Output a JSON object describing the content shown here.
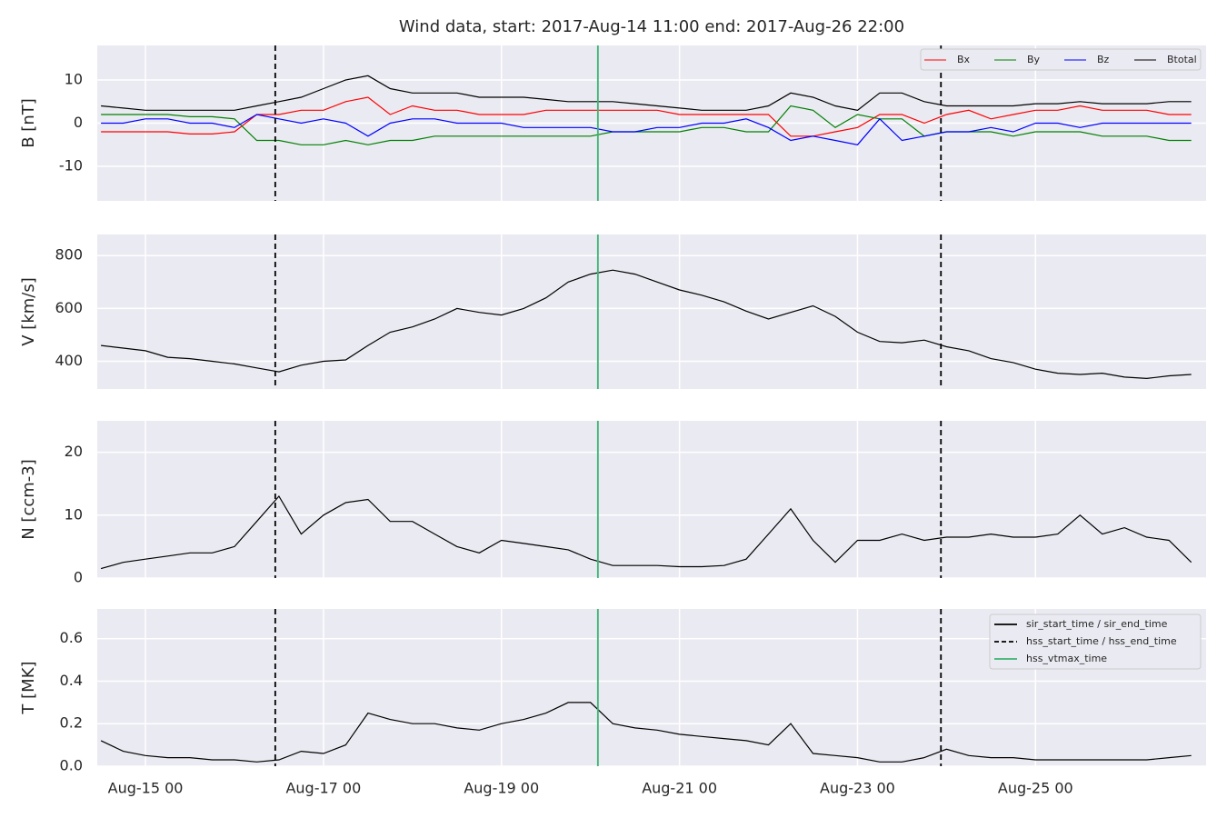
{
  "title": "Wind data, start: 2017-Aug-14 11:00  end: 2017-Aug-26 22:00",
  "markers": [
    {
      "name": "sir_start_time / sir_end_time",
      "color": "#000000",
      "style": "solid",
      "times": []
    },
    {
      "name": "hss_start_time / hss_end_time",
      "color": "#000000",
      "style": "dashed",
      "times": [
        "2017-08-16 11:00",
        "2017-08-23 22:30"
      ]
    },
    {
      "name": "hss_vtmax_time",
      "color": "#3cb371",
      "style": "solid",
      "times": [
        "2017-08-20 02:00"
      ]
    }
  ],
  "marker_legend": "upper right",
  "chart_data": [
    {
      "type": "line",
      "ylabel": "B [nT]",
      "grid": true,
      "legend": "upper right",
      "xlim": [
        "2017-08-14 11:00",
        "2017-08-26 22:00"
      ],
      "ylim": [
        -18,
        18
      ],
      "yticks": [
        -10,
        0,
        10
      ],
      "x": [
        "2017-08-14 12:00",
        "2017-08-14 18:00",
        "2017-08-15 00:00",
        "2017-08-15 06:00",
        "2017-08-15 12:00",
        "2017-08-15 18:00",
        "2017-08-16 00:00",
        "2017-08-16 06:00",
        "2017-08-16 12:00",
        "2017-08-16 18:00",
        "2017-08-17 00:00",
        "2017-08-17 06:00",
        "2017-08-17 12:00",
        "2017-08-17 18:00",
        "2017-08-18 00:00",
        "2017-08-18 06:00",
        "2017-08-18 12:00",
        "2017-08-18 18:00",
        "2017-08-19 00:00",
        "2017-08-19 06:00",
        "2017-08-19 12:00",
        "2017-08-19 18:00",
        "2017-08-20 00:00",
        "2017-08-20 06:00",
        "2017-08-20 12:00",
        "2017-08-20 18:00",
        "2017-08-21 00:00",
        "2017-08-21 06:00",
        "2017-08-21 12:00",
        "2017-08-21 18:00",
        "2017-08-22 00:00",
        "2017-08-22 06:00",
        "2017-08-22 12:00",
        "2017-08-22 18:00",
        "2017-08-23 00:00",
        "2017-08-23 06:00",
        "2017-08-23 12:00",
        "2017-08-23 18:00",
        "2017-08-24 00:00",
        "2017-08-24 06:00",
        "2017-08-24 12:00",
        "2017-08-24 18:00",
        "2017-08-25 00:00",
        "2017-08-25 06:00",
        "2017-08-25 12:00",
        "2017-08-25 18:00",
        "2017-08-26 00:00",
        "2017-08-26 06:00",
        "2017-08-26 12:00",
        "2017-08-26 18:00"
      ],
      "series": [
        {
          "name": "Bx",
          "color": "#ff0000",
          "values": [
            -2,
            -2,
            -2,
            -2,
            -2.5,
            -2.5,
            -2,
            2,
            2,
            3,
            3,
            5,
            6,
            2,
            4,
            3,
            3,
            2,
            2,
            2,
            3,
            3,
            3,
            3,
            3,
            3,
            2,
            2,
            2,
            2,
            2,
            -3,
            -3,
            -2,
            -1,
            2,
            2,
            0,
            2,
            3,
            1,
            2,
            3,
            3,
            4,
            3,
            3,
            3,
            2,
            2
          ]
        },
        {
          "name": "By",
          "color": "#008000",
          "values": [
            2,
            2,
            2,
            2,
            1.5,
            1.5,
            1,
            -4,
            -4,
            -5,
            -5,
            -4,
            -5,
            -4,
            -4,
            -3,
            -3,
            -3,
            -3,
            -3,
            -3,
            -3,
            -3,
            -2,
            -2,
            -2,
            -2,
            -1,
            -1,
            -2,
            -2,
            4,
            3,
            -1,
            2,
            1,
            1,
            -3,
            -2,
            -2,
            -2,
            -3,
            -2,
            -2,
            -2,
            -3,
            -3,
            -3,
            -4,
            -4
          ]
        },
        {
          "name": "Bz",
          "color": "#0000ff",
          "values": [
            0,
            0,
            1,
            1,
            0,
            0,
            -1,
            2,
            1,
            0,
            1,
            0,
            -3,
            0,
            1,
            1,
            0,
            0,
            0,
            -1,
            -1,
            -1,
            -1,
            -2,
            -2,
            -1,
            -1,
            0,
            0,
            1,
            -1,
            -4,
            -3,
            -4,
            -5,
            1,
            -4,
            -3,
            -2,
            -2,
            -1,
            -2,
            0,
            0,
            -1,
            0,
            0,
            0,
            0,
            0
          ]
        },
        {
          "name": "Btotal",
          "color": "#000000",
          "values": [
            4,
            3.5,
            3,
            3,
            3,
            3,
            3,
            4,
            5,
            6,
            8,
            10,
            11,
            8,
            7,
            7,
            7,
            6,
            6,
            6,
            5.5,
            5,
            5,
            5,
            4.5,
            4,
            3.5,
            3,
            3,
            3,
            4,
            7,
            6,
            4,
            3,
            7,
            7,
            5,
            4,
            4,
            4,
            4,
            4.5,
            4.5,
            5,
            4.5,
            4.5,
            4.5,
            5,
            5
          ]
        }
      ]
    },
    {
      "type": "line",
      "ylabel": "V [km/s]",
      "grid": true,
      "color": "#000000",
      "xlim": [
        "2017-08-14 11:00",
        "2017-08-26 22:00"
      ],
      "ylim": [
        295,
        880
      ],
      "yticks": [
        400,
        600,
        800
      ],
      "x": [
        "2017-08-14 12:00",
        "2017-08-14 18:00",
        "2017-08-15 00:00",
        "2017-08-15 06:00",
        "2017-08-15 12:00",
        "2017-08-15 18:00",
        "2017-08-16 00:00",
        "2017-08-16 06:00",
        "2017-08-16 12:00",
        "2017-08-16 18:00",
        "2017-08-17 00:00",
        "2017-08-17 06:00",
        "2017-08-17 12:00",
        "2017-08-17 18:00",
        "2017-08-18 00:00",
        "2017-08-18 06:00",
        "2017-08-18 12:00",
        "2017-08-18 18:00",
        "2017-08-19 00:00",
        "2017-08-19 06:00",
        "2017-08-19 12:00",
        "2017-08-19 18:00",
        "2017-08-20 00:00",
        "2017-08-20 06:00",
        "2017-08-20 12:00",
        "2017-08-20 18:00",
        "2017-08-21 00:00",
        "2017-08-21 06:00",
        "2017-08-21 12:00",
        "2017-08-21 18:00",
        "2017-08-22 00:00",
        "2017-08-22 06:00",
        "2017-08-22 12:00",
        "2017-08-22 18:00",
        "2017-08-23 00:00",
        "2017-08-23 06:00",
        "2017-08-23 12:00",
        "2017-08-23 18:00",
        "2017-08-24 00:00",
        "2017-08-24 06:00",
        "2017-08-24 12:00",
        "2017-08-24 18:00",
        "2017-08-25 00:00",
        "2017-08-25 06:00",
        "2017-08-25 12:00",
        "2017-08-25 18:00",
        "2017-08-26 00:00",
        "2017-08-26 06:00",
        "2017-08-26 12:00",
        "2017-08-26 18:00"
      ],
      "values": [
        460,
        450,
        440,
        415,
        410,
        400,
        390,
        375,
        360,
        385,
        400,
        405,
        460,
        510,
        530,
        560,
        600,
        585,
        575,
        600,
        640,
        700,
        730,
        745,
        730,
        700,
        670,
        650,
        625,
        590,
        560,
        585,
        610,
        570,
        510,
        475,
        470,
        480,
        455,
        440,
        410,
        395,
        370,
        355,
        350,
        355,
        340,
        335,
        345,
        350
      ]
    },
    {
      "type": "line",
      "ylabel": "N [ccm-3]",
      "grid": true,
      "color": "#000000",
      "xlim": [
        "2017-08-14 11:00",
        "2017-08-26 22:00"
      ],
      "ylim": [
        0,
        25
      ],
      "yticks": [
        0,
        10,
        20
      ],
      "x": [
        "2017-08-14 12:00",
        "2017-08-14 18:00",
        "2017-08-15 00:00",
        "2017-08-15 06:00",
        "2017-08-15 12:00",
        "2017-08-15 18:00",
        "2017-08-16 00:00",
        "2017-08-16 06:00",
        "2017-08-16 12:00",
        "2017-08-16 18:00",
        "2017-08-17 00:00",
        "2017-08-17 06:00",
        "2017-08-17 12:00",
        "2017-08-17 18:00",
        "2017-08-18 00:00",
        "2017-08-18 06:00",
        "2017-08-18 12:00",
        "2017-08-18 18:00",
        "2017-08-19 00:00",
        "2017-08-19 06:00",
        "2017-08-19 12:00",
        "2017-08-19 18:00",
        "2017-08-20 00:00",
        "2017-08-20 06:00",
        "2017-08-20 12:00",
        "2017-08-20 18:00",
        "2017-08-21 00:00",
        "2017-08-21 06:00",
        "2017-08-21 12:00",
        "2017-08-21 18:00",
        "2017-08-22 00:00",
        "2017-08-22 06:00",
        "2017-08-22 12:00",
        "2017-08-22 18:00",
        "2017-08-23 00:00",
        "2017-08-23 06:00",
        "2017-08-23 12:00",
        "2017-08-23 18:00",
        "2017-08-24 00:00",
        "2017-08-24 06:00",
        "2017-08-24 12:00",
        "2017-08-24 18:00",
        "2017-08-25 00:00",
        "2017-08-25 06:00",
        "2017-08-25 12:00",
        "2017-08-25 18:00",
        "2017-08-26 00:00",
        "2017-08-26 06:00",
        "2017-08-26 12:00",
        "2017-08-26 18:00"
      ],
      "values": [
        1.5,
        2.5,
        3,
        3.5,
        4,
        4,
        5,
        9,
        13,
        7,
        10,
        12,
        12.5,
        9,
        9,
        7,
        5,
        4,
        6,
        5.5,
        5,
        4.5,
        3,
        2,
        2,
        2,
        1.8,
        1.8,
        2,
        3,
        7,
        11,
        6,
        2.5,
        6,
        6,
        7,
        6,
        6.5,
        6.5,
        7,
        6.5,
        6.5,
        7,
        10,
        7,
        8,
        6.5,
        6,
        2.5
      ]
    },
    {
      "type": "line",
      "ylabel": "T [MK]",
      "grid": true,
      "color": "#000000",
      "xlim": [
        "2017-08-14 11:00",
        "2017-08-26 22:00"
      ],
      "ylim": [
        0,
        0.74
      ],
      "yticks": [
        {
          "value": 0,
          "label": "0.0"
        },
        0.2,
        0.4,
        0.6
      ],
      "xticks": [
        {
          "value": "2017-08-15 00:00",
          "label": "Aug-15 00"
        },
        {
          "value": "2017-08-17 00:00",
          "label": "Aug-17 00"
        },
        {
          "value": "2017-08-19 00:00",
          "label": "Aug-19 00"
        },
        {
          "value": "2017-08-21 00:00",
          "label": "Aug-21 00"
        },
        {
          "value": "2017-08-23 00:00",
          "label": "Aug-23 00"
        },
        {
          "value": "2017-08-25 00:00",
          "label": "Aug-25 00"
        }
      ],
      "x": [
        "2017-08-14 12:00",
        "2017-08-14 18:00",
        "2017-08-15 00:00",
        "2017-08-15 06:00",
        "2017-08-15 12:00",
        "2017-08-15 18:00",
        "2017-08-16 00:00",
        "2017-08-16 06:00",
        "2017-08-16 12:00",
        "2017-08-16 18:00",
        "2017-08-17 00:00",
        "2017-08-17 06:00",
        "2017-08-17 12:00",
        "2017-08-17 18:00",
        "2017-08-18 00:00",
        "2017-08-18 06:00",
        "2017-08-18 12:00",
        "2017-08-18 18:00",
        "2017-08-19 00:00",
        "2017-08-19 06:00",
        "2017-08-19 12:00",
        "2017-08-19 18:00",
        "2017-08-20 00:00",
        "2017-08-20 06:00",
        "2017-08-20 12:00",
        "2017-08-20 18:00",
        "2017-08-21 00:00",
        "2017-08-21 06:00",
        "2017-08-21 12:00",
        "2017-08-21 18:00",
        "2017-08-22 00:00",
        "2017-08-22 06:00",
        "2017-08-22 12:00",
        "2017-08-22 18:00",
        "2017-08-23 00:00",
        "2017-08-23 06:00",
        "2017-08-23 12:00",
        "2017-08-23 18:00",
        "2017-08-24 00:00",
        "2017-08-24 06:00",
        "2017-08-24 12:00",
        "2017-08-24 18:00",
        "2017-08-25 00:00",
        "2017-08-25 06:00",
        "2017-08-25 12:00",
        "2017-08-25 18:00",
        "2017-08-26 00:00",
        "2017-08-26 06:00",
        "2017-08-26 12:00",
        "2017-08-26 18:00"
      ],
      "values": [
        0.12,
        0.07,
        0.05,
        0.04,
        0.04,
        0.03,
        0.03,
        0.02,
        0.03,
        0.07,
        0.06,
        0.1,
        0.25,
        0.22,
        0.2,
        0.2,
        0.18,
        0.17,
        0.2,
        0.22,
        0.25,
        0.3,
        0.3,
        0.2,
        0.18,
        0.17,
        0.15,
        0.14,
        0.13,
        0.12,
        0.1,
        0.2,
        0.06,
        0.05,
        0.04,
        0.02,
        0.02,
        0.04,
        0.08,
        0.05,
        0.04,
        0.04,
        0.03,
        0.03,
        0.03,
        0.03,
        0.03,
        0.03,
        0.04,
        0.05
      ]
    }
  ]
}
